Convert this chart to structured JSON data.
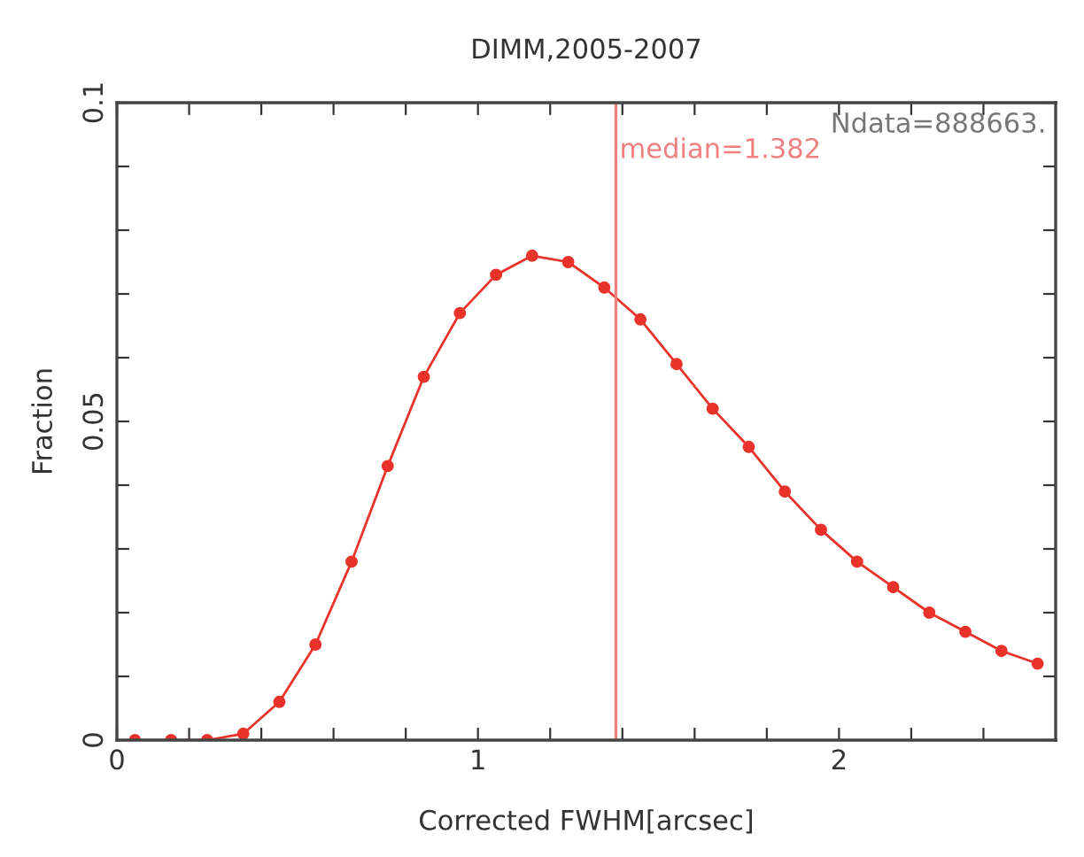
{
  "chart_data": {
    "type": "line",
    "title": "DIMM,2005-2007",
    "xlabel": "Corrected FWHM[arcsec]",
    "ylabel": "Fraction",
    "x": [
      0.05,
      0.15,
      0.25,
      0.35,
      0.45,
      0.55,
      0.65,
      0.75,
      0.85,
      0.95,
      1.05,
      1.15,
      1.25,
      1.35,
      1.45,
      1.55,
      1.65,
      1.75,
      1.85,
      1.95,
      2.05,
      2.15,
      2.25,
      2.35,
      2.45,
      2.55
    ],
    "series": [
      {
        "color": "#e8322a",
        "values": [
          0,
          0,
          0,
          0.001,
          0.006,
          0.015,
          0.028,
          0.043,
          0.057,
          0.067,
          0.073,
          0.076,
          0.075,
          0.071,
          0.066,
          0.059,
          0.052,
          0.046,
          0.039,
          0.033,
          0.028,
          0.024,
          0.02,
          0.017,
          0.014,
          0.012
        ]
      }
    ],
    "marker": "circle",
    "line_style": "solid",
    "grid": false,
    "legend": false,
    "xlim": [
      0,
      2.6
    ],
    "ylim": [
      0,
      0.1
    ],
    "xticks": [
      0,
      {
        "value": 0.2,
        "label": null
      },
      {
        "value": 0.4,
        "label": null
      },
      {
        "value": 0.6,
        "label": null
      },
      {
        "value": 0.8,
        "label": null
      },
      1,
      {
        "value": 1.2,
        "label": null
      },
      {
        "value": 1.4,
        "label": null
      },
      {
        "value": 1.6,
        "label": null
      },
      {
        "value": 1.8,
        "label": null
      },
      2,
      {
        "value": 2.2,
        "label": null
      },
      {
        "value": 2.4,
        "label": null
      }
    ],
    "yticks": [
      0,
      {
        "value": 0.01,
        "label": null
      },
      {
        "value": 0.02,
        "label": null
      },
      {
        "value": 0.03,
        "label": null
      },
      {
        "value": 0.04,
        "label": null
      },
      0.05,
      {
        "value": 0.06,
        "label": null
      },
      {
        "value": 0.07,
        "label": null
      },
      {
        "value": 0.08,
        "label": null
      },
      {
        "value": 0.09,
        "label": null
      },
      0.1
    ],
    "ref_lines": [
      {
        "axis": "x",
        "value": 1.382,
        "label": "median=1.382",
        "color": "#f08080"
      }
    ],
    "annotations": [
      "Ndata=888663."
    ]
  }
}
